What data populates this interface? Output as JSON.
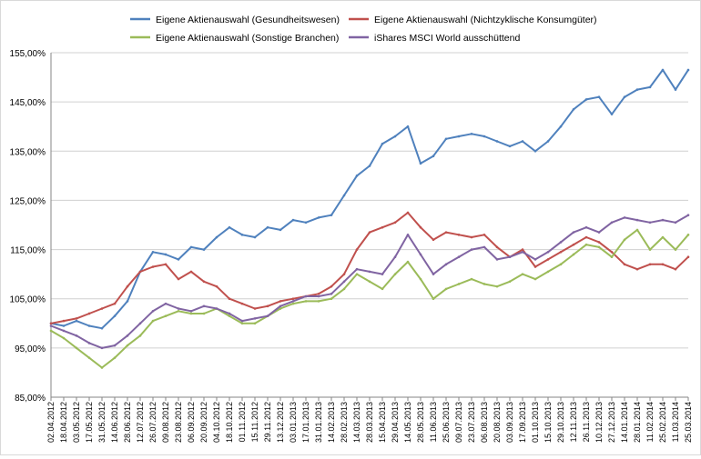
{
  "chart_data": {
    "type": "line",
    "y_tick_labels": [
      "85,00%",
      "95,00%",
      "105,00%",
      "115,00%",
      "125,00%",
      "135,00%",
      "145,00%",
      "155,00%"
    ],
    "y_ticks": [
      85,
      95,
      105,
      115,
      125,
      135,
      145,
      155
    ],
    "ylim": [
      85,
      155
    ],
    "grid": "horizontal",
    "legend_position": "top",
    "x_tick_labels": [
      "02.04.2012",
      "18.04.2012",
      "03.05.2012",
      "17.05.2012",
      "31.05.2012",
      "14.06.2012",
      "28.06.2012",
      "12.07.2012",
      "26.07.2012",
      "09.08.2012",
      "23.08.2012",
      "06.09.2012",
      "20.09.2012",
      "04.10.2012",
      "18.10.2012",
      "01.11.2012",
      "15.11.2012",
      "29.11.2012",
      "13.12.2012",
      "03.01.2013",
      "17.01.2013",
      "31.01.2013",
      "14.02.2013",
      "28.02.2013",
      "14.03.2013",
      "28.03.2013",
      "15.04.2013",
      "29.04.2013",
      "14.05.2013",
      "28.05.2013",
      "11.06.2013",
      "25.06.2013",
      "09.07.2013",
      "23.07.2013",
      "06.08.2013",
      "20.08.2013",
      "03.09.2013",
      "17.09.2013",
      "01.10.2013",
      "15.10.2013",
      "29.10.2013",
      "12.11.2013",
      "26.11.2013",
      "10.12.2013",
      "27.12.2013",
      "14.01.2014",
      "28.01.2014",
      "11.02.2014",
      "25.02.2014",
      "11.03.2014",
      "25.03.2014"
    ],
    "series": [
      {
        "name": "Eigene Aktienauswahl (Gesundheitswesen)",
        "color": "#4f81bd",
        "values": [
          100,
          99.5,
          100.5,
          99.5,
          99,
          101.5,
          104.5,
          110.5,
          114.5,
          114,
          113,
          115.5,
          115,
          117.5,
          119.5,
          118,
          117.5,
          119.5,
          119,
          121,
          120.5,
          121.5,
          122,
          126,
          130,
          132,
          136.5,
          138,
          140,
          132.5,
          134,
          137.5,
          138,
          138.5,
          138,
          137,
          136,
          137,
          135,
          137,
          140,
          143.5,
          145.5,
          146,
          142.5,
          146,
          147.5,
          148,
          151.5,
          147.5,
          151.5
        ]
      },
      {
        "name": "Eigene Aktienauswahl (Nichtzyklische Konsumgüter)",
        "color": "#c0504d",
        "values": [
          100,
          100.5,
          101,
          102,
          103,
          104,
          107.5,
          110.5,
          111.5,
          112,
          109,
          110.5,
          108.5,
          107.5,
          105,
          104,
          103,
          103.5,
          104.5,
          105,
          105.5,
          106,
          107.5,
          110,
          115,
          118.5,
          119.5,
          120.5,
          122.5,
          119.5,
          117,
          118.5,
          118,
          117.5,
          118,
          115.5,
          113.5,
          115,
          111.5,
          113,
          114.5,
          116,
          117.5,
          116.5,
          114.5,
          112,
          111,
          112,
          112,
          111,
          113.5
        ]
      },
      {
        "name": "Eigene Aktienauswahl (Sonstige Branchen)",
        "color": "#9bbb59",
        "values": [
          98.5,
          97,
          95,
          93,
          91,
          93,
          95.5,
          97.5,
          100.5,
          101.5,
          102.5,
          102,
          102,
          103,
          101.5,
          100,
          100,
          101.5,
          103,
          104,
          104.5,
          104.5,
          105,
          107,
          110,
          108.5,
          107,
          110,
          112.5,
          109,
          105,
          107,
          108,
          109,
          108,
          107.5,
          108.5,
          110,
          109,
          110.5,
          112,
          114,
          116,
          115.5,
          113.5,
          117,
          119,
          115,
          117.5,
          115,
          118
        ]
      },
      {
        "name": "iShares MSCI World ausschüttend",
        "color": "#8064a2",
        "values": [
          99.5,
          98.5,
          97.5,
          96,
          95,
          95.5,
          97.5,
          100,
          102.5,
          104,
          103,
          102.5,
          103.5,
          103,
          102,
          100.5,
          101,
          101.5,
          103.5,
          104.5,
          105.5,
          105.5,
          106,
          108.5,
          111,
          110.5,
          110,
          113.5,
          118,
          114,
          110,
          112,
          113.5,
          115,
          115.5,
          113,
          113.5,
          114.5,
          113,
          114.5,
          116.5,
          118.5,
          119.5,
          118.5,
          120.5,
          121.5,
          121,
          120.5,
          121,
          120.5,
          122
        ]
      }
    ]
  }
}
